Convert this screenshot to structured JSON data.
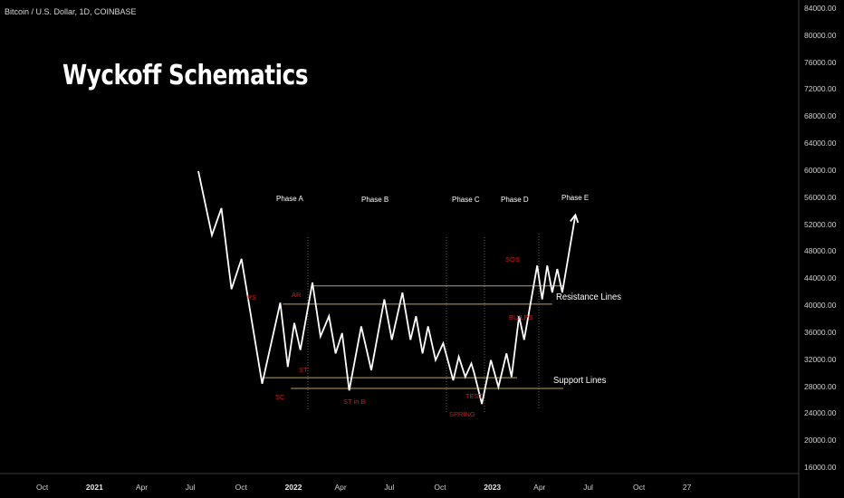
{
  "header": {
    "symbol": "Bitcoin / U.S. Dollar, 1D, COINBASE"
  },
  "title": "Wyckoff Schematics",
  "phases": {
    "a": "Phase A",
    "b": "Phase B",
    "c": "Phase C",
    "d": "Phase D",
    "e": "Phase E"
  },
  "events": {
    "ps": "PS",
    "ar": "AR",
    "st": "ST",
    "sc": "SC",
    "st_in_b": "ST in B",
    "spring": "SPRING",
    "test": "TEST",
    "sos": "SOS",
    "bu_lps": "BU/LPS"
  },
  "line_labels": {
    "resistance": "Resistance Lines",
    "support": "Support Lines"
  },
  "colors": {
    "price_path": "#ffffff",
    "levels": "#b9a35a",
    "event_labels": "#d21a1a",
    "phase_dividers": "#666666",
    "background": "#000000"
  },
  "chart_data": {
    "type": "line",
    "title": "Wyckoff Schematics",
    "symbol": "Bitcoin / U.S. Dollar, 1D, COINBASE",
    "y_axis": {
      "min": 16000,
      "max": 84000,
      "position": "right",
      "tick_labels": [
        "84000.00",
        "80000.00",
        "76000.00",
        "72000.00",
        "68000.00",
        "64000.00",
        "60000.00",
        "56000.00",
        "52000.00",
        "48000.00",
        "44000.00",
        "40000.00",
        "36000.00",
        "32000.00",
        "28000.00",
        "24000.00",
        "20000.00",
        "16000.00"
      ]
    },
    "x_axis": {
      "tick_labels": [
        {
          "label": "Oct",
          "year": false
        },
        {
          "label": "2021",
          "year": true
        },
        {
          "label": "Apr",
          "year": false
        },
        {
          "label": "Jul",
          "year": false
        },
        {
          "label": "Oct",
          "year": false
        },
        {
          "label": "2022",
          "year": true
        },
        {
          "label": "Apr",
          "year": false
        },
        {
          "label": "Jul",
          "year": false
        },
        {
          "label": "Oct",
          "year": false
        },
        {
          "label": "2023",
          "year": true
        },
        {
          "label": "Apr",
          "year": false
        },
        {
          "label": "Jul",
          "year": false
        },
        {
          "label": "Oct",
          "year": false
        },
        {
          "label": "27",
          "year": false
        }
      ]
    },
    "grid": false,
    "levels": [
      {
        "name": "Resistance Lines",
        "values": [
          43000,
          40300
        ]
      },
      {
        "name": "Support Lines",
        "values": [
          29400,
          27800
        ]
      }
    ],
    "path": [
      [
        "2021-08-05",
        60000
      ],
      [
        "2021-09-01",
        50500
      ],
      [
        "2021-09-20",
        54500
      ],
      [
        "2021-10-10",
        42500
      ],
      [
        "2021-10-30",
        47000
      ],
      [
        "2021-12-10",
        28500
      ],
      [
        "2022-01-15",
        40500
      ],
      [
        "2022-01-30",
        31000
      ],
      [
        "2022-02-12",
        37500
      ],
      [
        "2022-02-24",
        33500
      ],
      [
        "2022-03-20",
        43500
      ],
      [
        "2022-04-05",
        35500
      ],
      [
        "2022-04-22",
        38500
      ],
      [
        "2022-05-05",
        33000
      ],
      [
        "2022-05-18",
        36000
      ],
      [
        "2022-06-01",
        27500
      ],
      [
        "2022-06-25",
        37000
      ],
      [
        "2022-07-15",
        30500
      ],
      [
        "2022-08-10",
        41000
      ],
      [
        "2022-08-25",
        35000
      ],
      [
        "2022-09-15",
        42000
      ],
      [
        "2022-10-01",
        35000
      ],
      [
        "2022-10-12",
        38500
      ],
      [
        "2022-10-25",
        33000
      ],
      [
        "2022-11-05",
        37000
      ],
      [
        "2022-11-20",
        32000
      ],
      [
        "2022-12-05",
        34500
      ],
      [
        "2022-12-25",
        29000
      ],
      [
        "2023-01-05",
        32500
      ],
      [
        "2023-01-18",
        29500
      ],
      [
        "2023-01-30",
        31500
      ],
      [
        "2023-02-05",
        30000
      ],
      [
        "2023-02-20",
        25500
      ],
      [
        "2023-03-10",
        32000
      ],
      [
        "2023-03-25",
        28000
      ],
      [
        "2023-04-10",
        33000
      ],
      [
        "2023-04-20",
        29500
      ],
      [
        "2023-05-05",
        38500
      ],
      [
        "2023-05-15",
        35000
      ],
      [
        "2023-06-10",
        46000
      ],
      [
        "2023-06-20",
        41000
      ],
      [
        "2023-06-30",
        46000
      ],
      [
        "2023-07-10",
        42000
      ],
      [
        "2023-07-20",
        45500
      ],
      [
        "2023-07-30",
        42000
      ],
      [
        "2023-08-25",
        53500
      ]
    ]
  }
}
